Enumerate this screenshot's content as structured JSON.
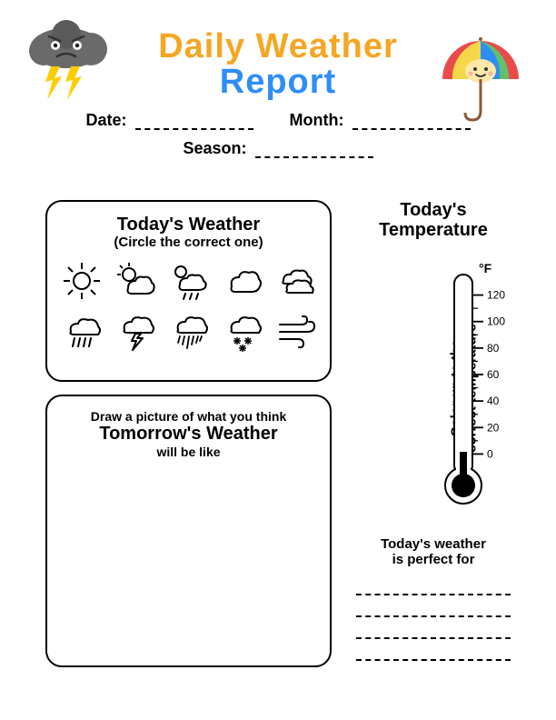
{
  "title": {
    "line1": "Daily Weather",
    "line2": "Report",
    "line1_color": "#f5a623",
    "line2_color": "#2e8ef7"
  },
  "fields": {
    "date_label": "Date:",
    "month_label": "Month:",
    "season_label": "Season:"
  },
  "weather_box": {
    "title": "Today's Weather",
    "subtitle": "(Circle the correct one)",
    "icons": [
      "sunny",
      "partly-cloudy",
      "cloudy-rain",
      "cloudy",
      "overcast",
      "rain",
      "thunderstorm",
      "heavy-rain",
      "snow",
      "wind"
    ]
  },
  "draw_box": {
    "line1": "Draw a picture of what you think",
    "line2": "Tomorrow's Weather",
    "line3": "will be like"
  },
  "temperature": {
    "title1": "Today's",
    "title2": "Temperature",
    "instruction1": "Color up to the",
    "instruction2": "correct temperature",
    "unit": "°F",
    "ticks": [
      120,
      100,
      80,
      60,
      40,
      20,
      0
    ],
    "range": [
      -10,
      130
    ]
  },
  "perfect": {
    "line1": "Today's weather",
    "line2": "is perfect for",
    "write_line_count": 4
  },
  "colors": {
    "cloud": "#6a6a6a",
    "cloud_dark": "#5a5a5a",
    "lightning": "#ffcc00",
    "umbrella_segments": [
      "#e94b4b",
      "#f5d747",
      "#5fc26a",
      "#2e8ef7"
    ],
    "umbrella_face": "#ffe9a8"
  }
}
